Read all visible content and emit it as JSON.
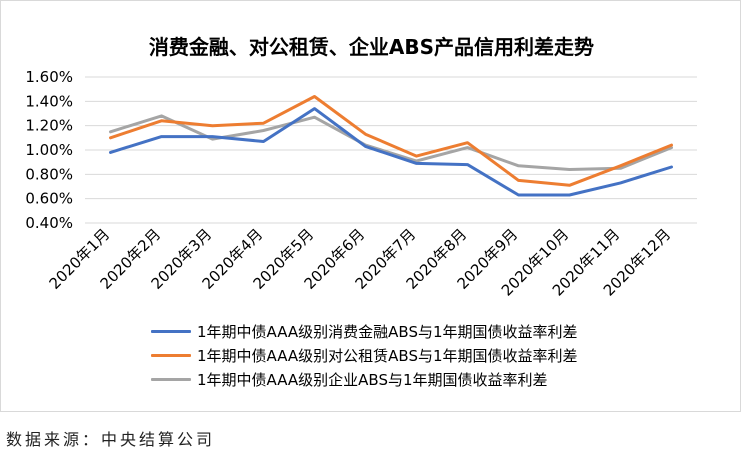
{
  "chart_data": {
    "type": "line",
    "title": "消费金融、对公租赁、企业ABS产品信用利差走势",
    "categories": [
      "2020年1月",
      "2020年2月",
      "2020年3月",
      "2020年4月",
      "2020年5月",
      "2020年6月",
      "2020年7月",
      "2020年8月",
      "2020年9月",
      "2020年10月",
      "2020年11月",
      "2020年12月"
    ],
    "y_ticks": [
      "1.60%",
      "1.40%",
      "1.20%",
      "1.00%",
      "0.80%",
      "0.60%",
      "0.40%"
    ],
    "ylim": [
      0.4,
      1.6
    ],
    "y_unit": "%",
    "grid": true,
    "legend_position": "bottom",
    "series": [
      {
        "name": "1年期中债AAA级别消费金融ABS与1年期国债收益率利差",
        "color": "#4472c4",
        "values": [
          0.98,
          1.11,
          1.11,
          1.07,
          1.34,
          1.03,
          0.89,
          0.88,
          0.63,
          0.63,
          0.73,
          0.86
        ]
      },
      {
        "name": "1年期中债AAA级别对公租赁ABS与1年期国债收益率利差",
        "color": "#ed7d31",
        "values": [
          1.1,
          1.24,
          1.2,
          1.22,
          1.44,
          1.13,
          0.95,
          1.06,
          0.75,
          0.71,
          0.87,
          1.04
        ]
      },
      {
        "name": "1年期中债AAA级别企业ABS与1年期国债收益率利差",
        "color": "#a5a5a5",
        "values": [
          1.15,
          1.28,
          1.09,
          1.16,
          1.27,
          1.04,
          0.91,
          1.02,
          0.87,
          0.84,
          0.85,
          1.02
        ]
      }
    ]
  },
  "source_note": "数据来源：中央结算公司"
}
